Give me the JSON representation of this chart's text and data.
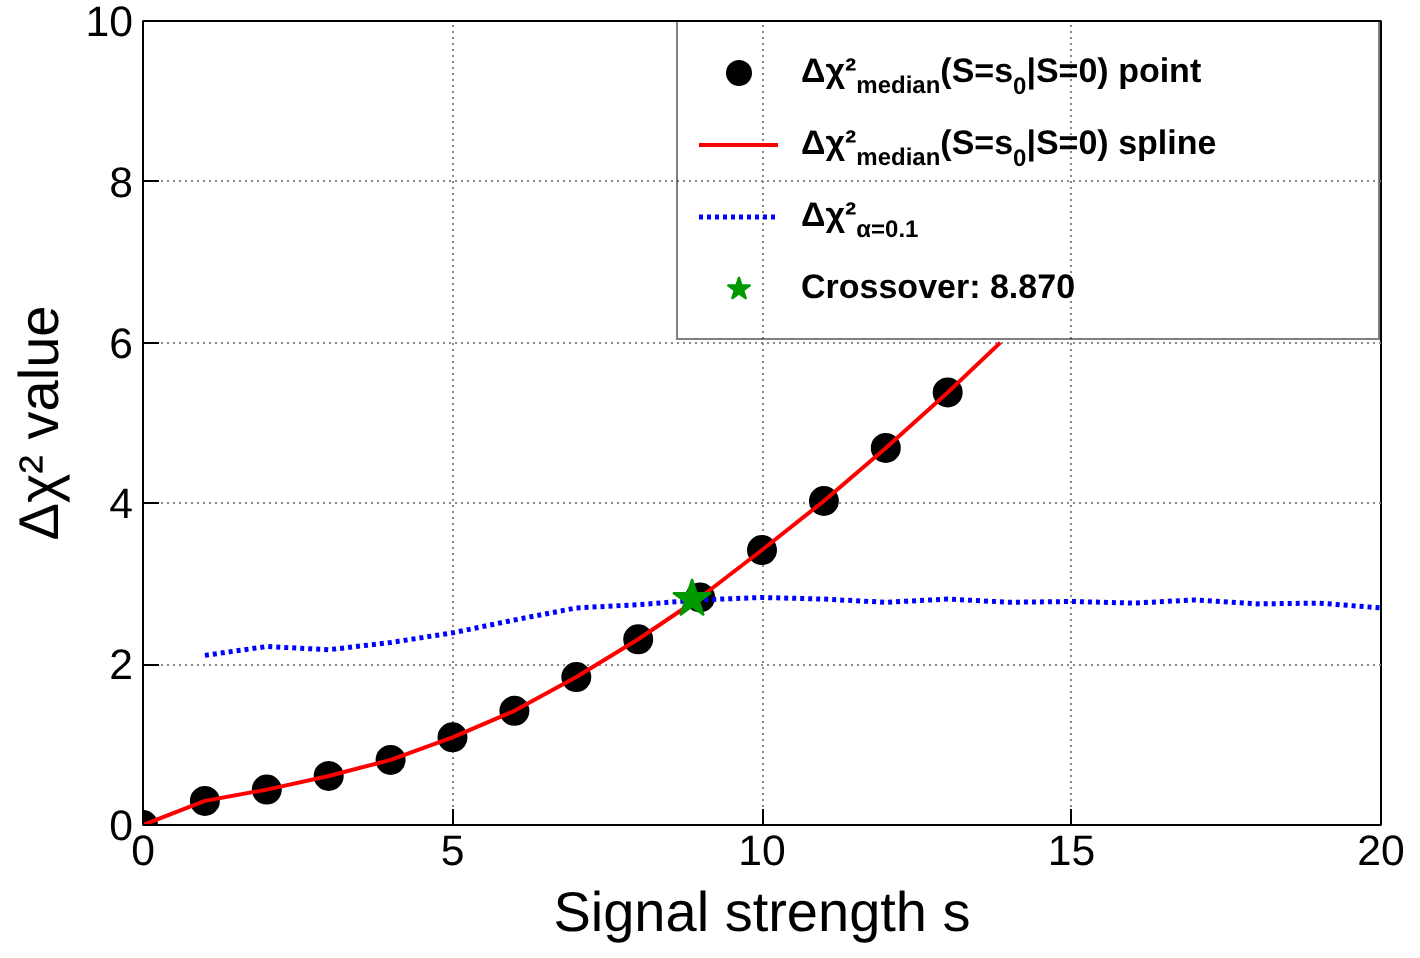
{
  "chart_data": {
    "type": "line",
    "xlabel": "Signal strength s",
    "ylabel": "Δχ² value",
    "xlim": [
      0,
      20
    ],
    "ylim": [
      0,
      10
    ],
    "xticks": [
      0,
      5,
      10,
      15,
      20
    ],
    "yticks": [
      0,
      2,
      4,
      6,
      8,
      10
    ],
    "grid": true,
    "legend": "top right",
    "series": [
      {
        "name": "Δχ²$_{median}$(S=s$_{0}$|S=0) point",
        "type": "scatter",
        "marker": "circle",
        "color": "#000000",
        "x": [
          0,
          1,
          2,
          3,
          4,
          5,
          6,
          7,
          8,
          9,
          10,
          11,
          12,
          13
        ],
        "values": [
          0,
          0.3,
          0.44,
          0.61,
          0.81,
          1.09,
          1.42,
          1.84,
          2.31,
          2.83,
          3.42,
          4.03,
          4.69,
          5.38
        ]
      },
      {
        "name": "Δχ²$_{median}$(S=s$_{0}$|S=0) spline",
        "line_style": "solid",
        "color": "#ff0000",
        "x": [
          0,
          1,
          2,
          3,
          4,
          5,
          6,
          7,
          8,
          9,
          10,
          11,
          12,
          13,
          13.85
        ],
        "values": [
          0,
          0.3,
          0.44,
          0.61,
          0.81,
          1.09,
          1.42,
          1.84,
          2.31,
          2.83,
          3.42,
          4.03,
          4.69,
          5.38,
          6.0
        ]
      },
      {
        "name": "Δχ²$_{α=0.1}$",
        "line_style": "dotted",
        "color": "#0000ff",
        "x": [
          1,
          2,
          3,
          4,
          5,
          6,
          7,
          8,
          9,
          10,
          11,
          12,
          13,
          14,
          15,
          16,
          17,
          18,
          19,
          20
        ],
        "values": [
          2.11,
          2.22,
          2.18,
          2.27,
          2.39,
          2.55,
          2.7,
          2.74,
          2.8,
          2.83,
          2.81,
          2.77,
          2.81,
          2.77,
          2.78,
          2.76,
          2.8,
          2.75,
          2.76,
          2.7
        ]
      },
      {
        "name": "Crossover: 8.870",
        "type": "scatter",
        "marker": "star",
        "color": "#009900",
        "x": [
          8.87
        ],
        "values": [
          2.81
        ]
      }
    ]
  }
}
